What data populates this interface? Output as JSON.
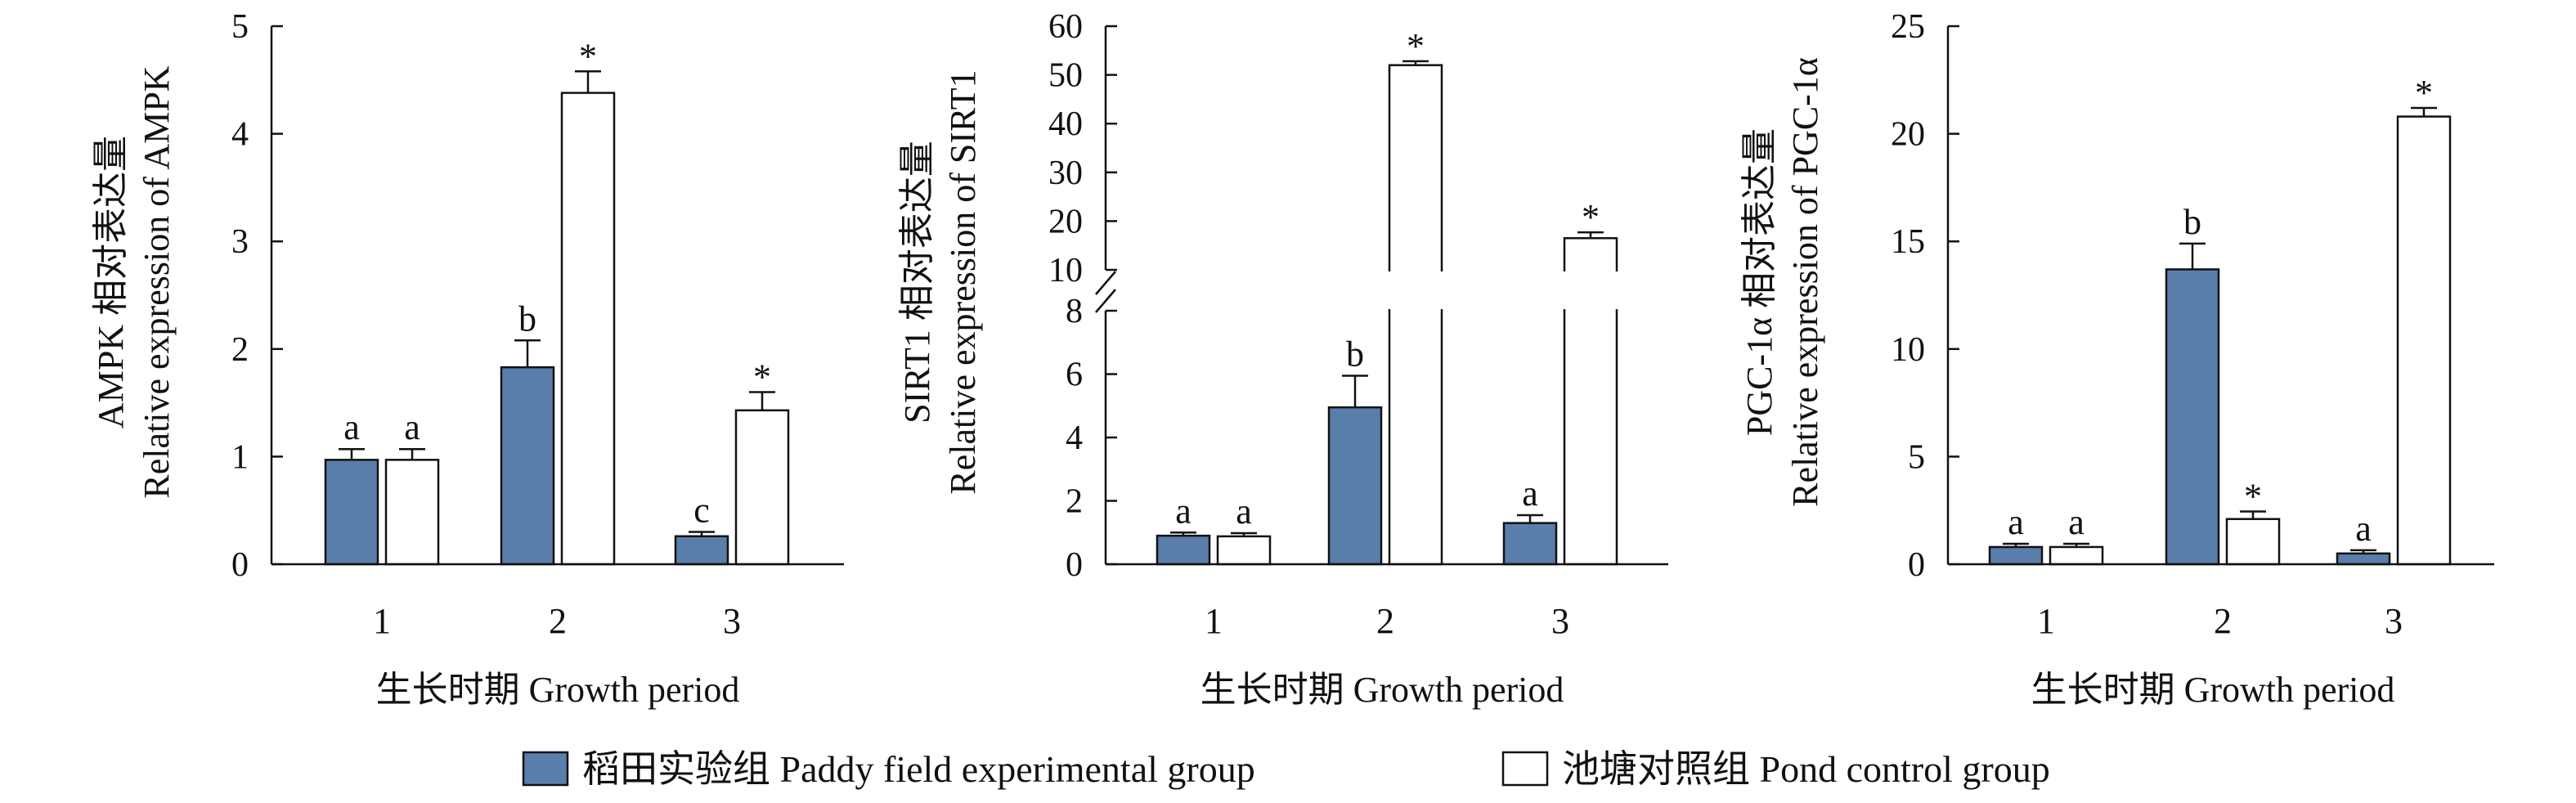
{
  "chart_data": [
    {
      "type": "bar",
      "xlabel": "生长时期 Growth period",
      "ylabel_line1": "AMPK 相对表达量",
      "ylabel_line2": "Relative expression of AMPK",
      "ylim": [
        0,
        5
      ],
      "yticks": [
        "0",
        "1",
        "2",
        "3",
        "4",
        "5"
      ],
      "categories": [
        "1",
        "2",
        "3"
      ],
      "series": [
        {
          "name": "稻田实验组 Paddy field experimental group",
          "values": [
            0.97,
            1.83,
            0.26
          ],
          "errors": [
            0.1,
            0.25,
            0.04
          ],
          "labels": [
            "a",
            "b",
            "c"
          ]
        },
        {
          "name": "池塘对照组 Pond control group",
          "values": [
            0.97,
            4.38,
            1.43
          ],
          "errors": [
            0.1,
            0.2,
            0.17
          ],
          "labels": [
            "a",
            "*",
            "*"
          ]
        }
      ]
    },
    {
      "type": "bar",
      "xlabel": "生长时期 Growth period",
      "ylabel_line1": "SIRT1 相对表达量",
      "ylabel_line2": "Relative expression of SIRT1",
      "ylim": [
        0,
        60
      ],
      "axis_break": [
        8,
        10
      ],
      "yticks_lower": [
        "0",
        "2",
        "4",
        "6",
        "8"
      ],
      "yticks_upper": [
        "10",
        "20",
        "30",
        "40",
        "50",
        "60"
      ],
      "categories": [
        "1",
        "2",
        "3"
      ],
      "series": [
        {
          "name": "稻田实验组 Paddy field experimental group",
          "values": [
            0.9,
            4.95,
            1.3
          ],
          "errors": [
            0.1,
            1.0,
            0.25
          ],
          "labels": [
            "a",
            "b",
            "a"
          ]
        },
        {
          "name": "池塘对照组 Pond control group",
          "values": [
            0.88,
            52.0,
            16.5
          ],
          "errors": [
            0.1,
            0.8,
            1.2
          ],
          "labels": [
            "a",
            "*",
            "*"
          ]
        }
      ]
    },
    {
      "type": "bar",
      "xlabel": "生长时期 Growth period",
      "ylabel_line1": "PGC-1α 相对表达量",
      "ylabel_line2": "Relative expression of PGC-1α",
      "ylim": [
        0,
        25
      ],
      "yticks": [
        "0",
        "5",
        "10",
        "15",
        "20",
        "25"
      ],
      "categories": [
        "1",
        "2",
        "3"
      ],
      "series": [
        {
          "name": "稻田实验组 Paddy field experimental group",
          "values": [
            0.8,
            13.7,
            0.5
          ],
          "errors": [
            0.15,
            1.2,
            0.15
          ],
          "labels": [
            "a",
            "b",
            "a"
          ]
        },
        {
          "name": "池塘对照组 Pond control group",
          "values": [
            0.8,
            2.1,
            20.8
          ],
          "errors": [
            0.15,
            0.35,
            0.4
          ],
          "labels": [
            "a",
            "*",
            "*"
          ]
        }
      ]
    }
  ],
  "legend": {
    "paddy": "稻田实验组 Paddy field experimental group",
    "pond": "池塘对照组 Pond control group"
  },
  "colors": {
    "paddy": "#5a7eab",
    "pond": "#ffffff",
    "stroke": "#111111"
  }
}
